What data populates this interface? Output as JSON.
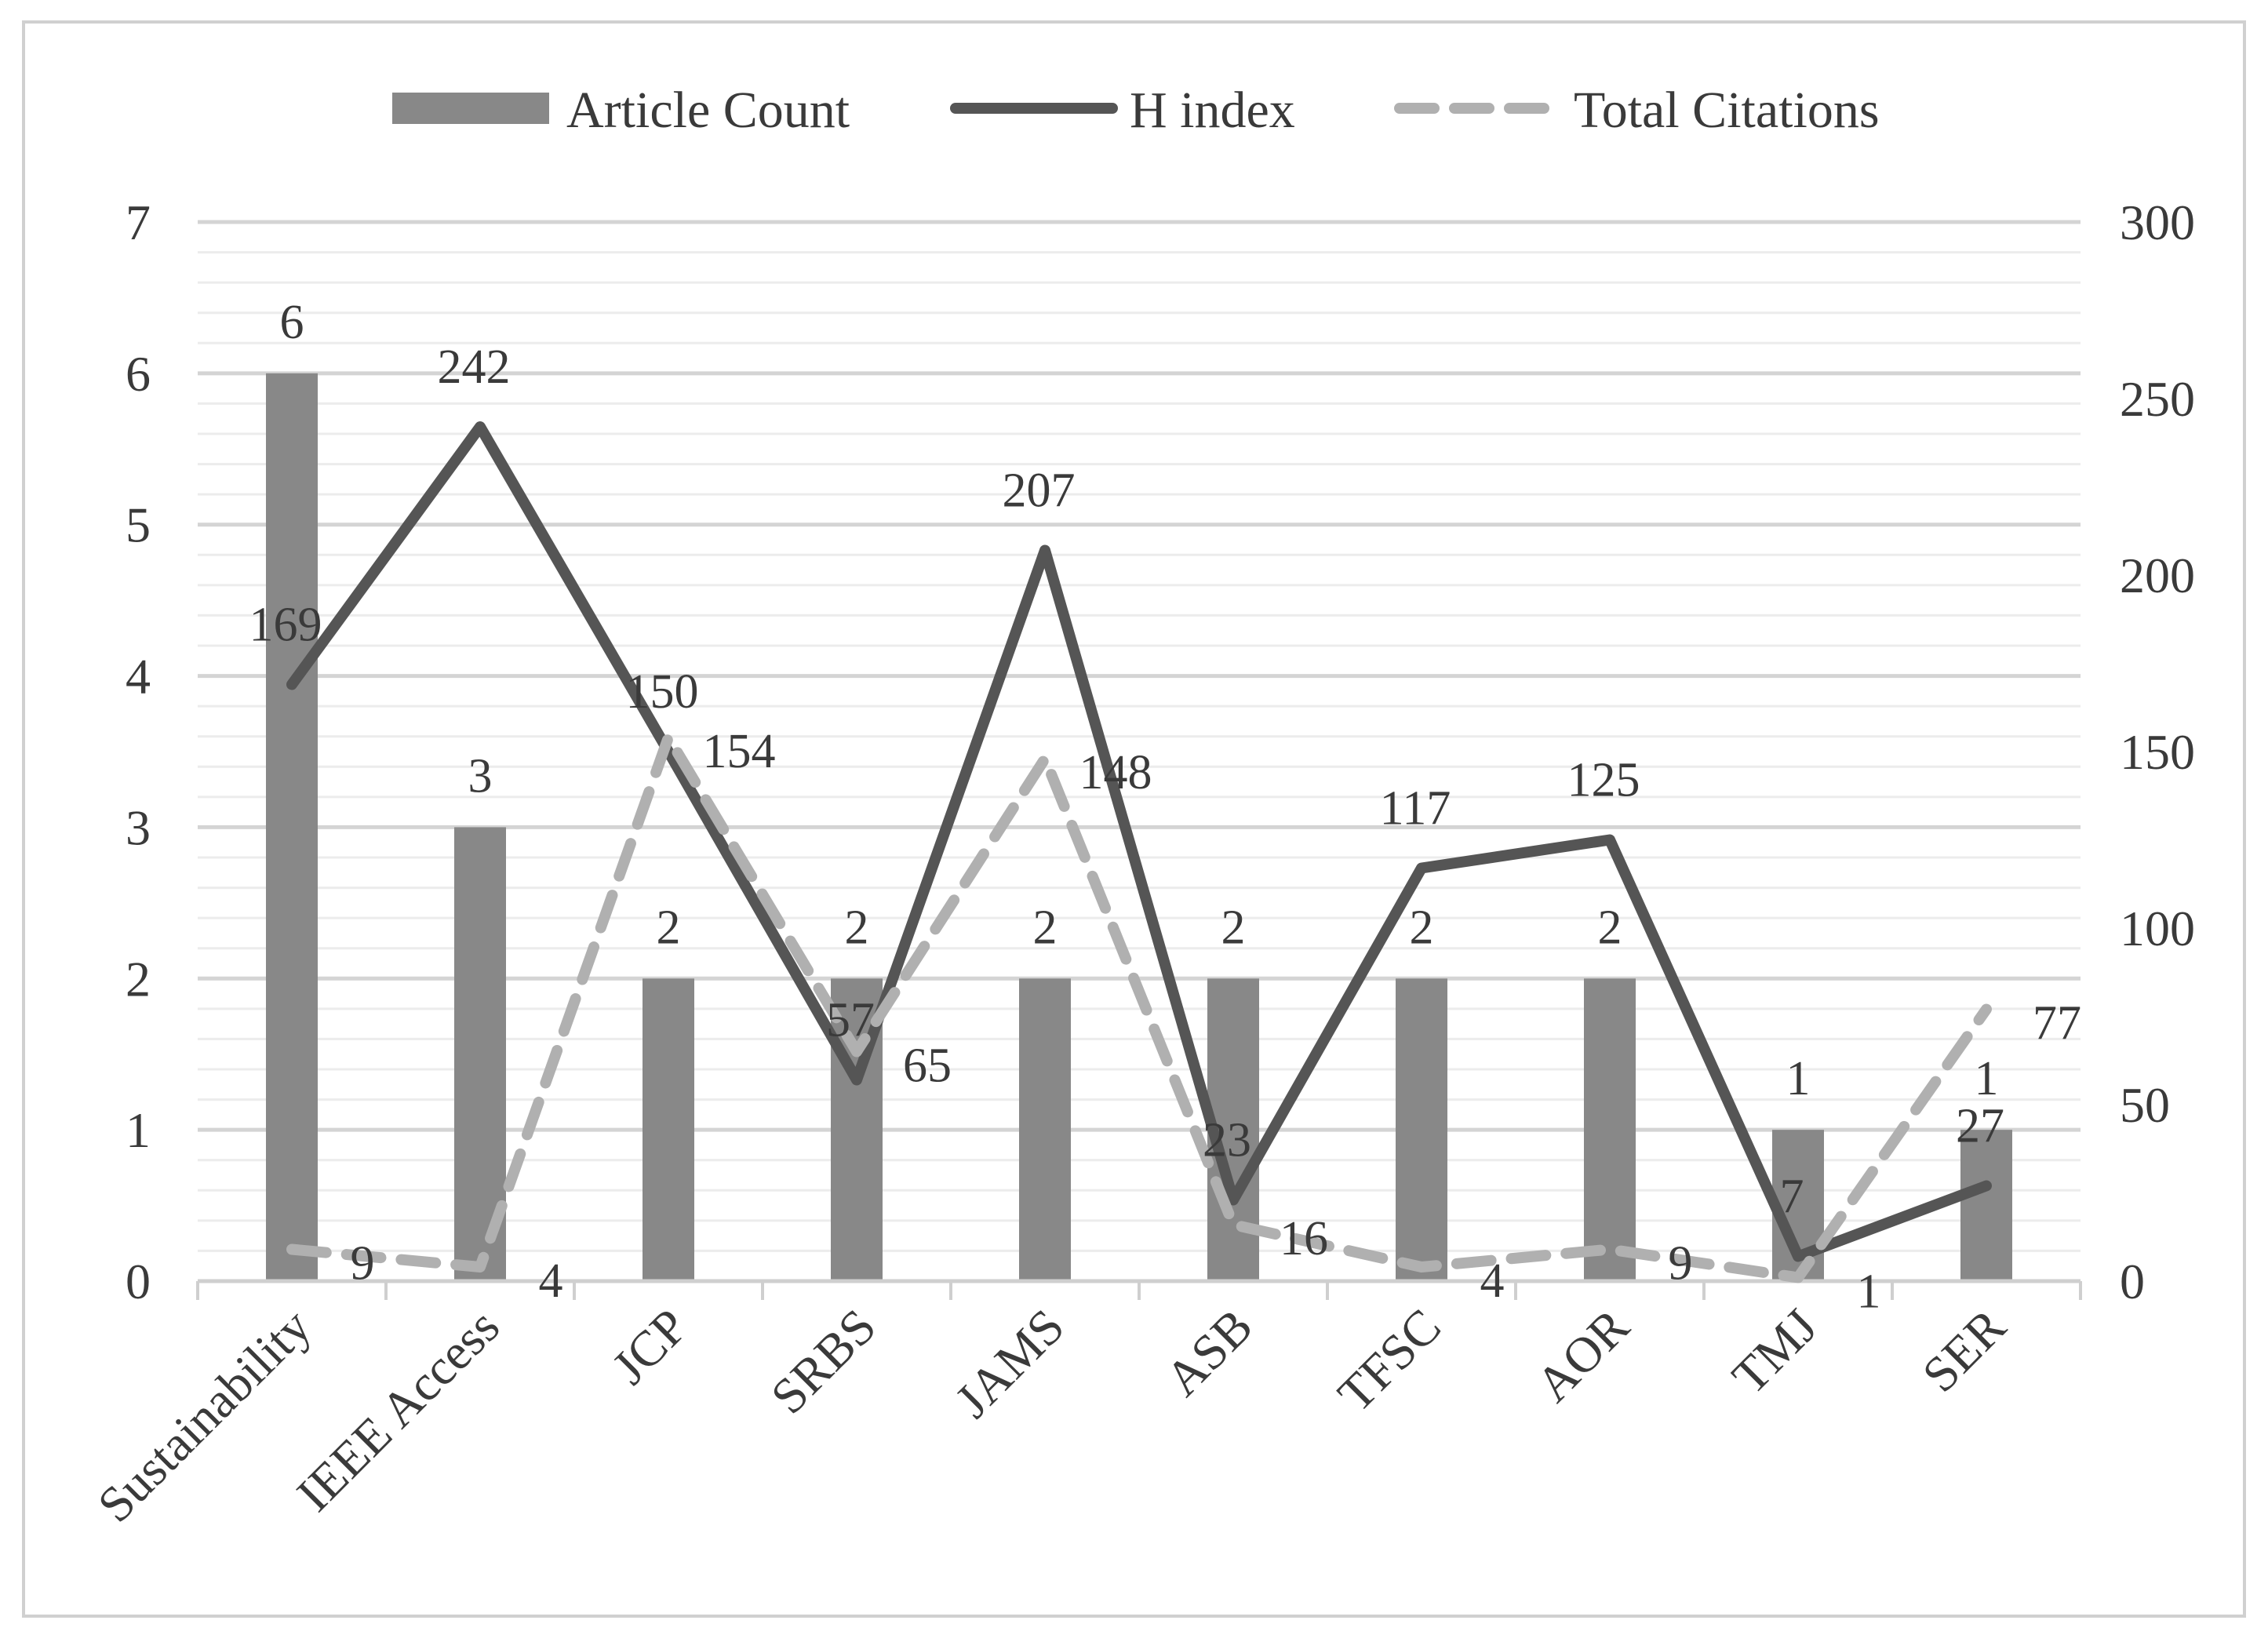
{
  "chart_data": {
    "type": "bar",
    "categories": [
      "Sustainability",
      "IEEE Access",
      "JCP",
      "SRBS",
      "JAMS",
      "ASB",
      "TFSC",
      "AOR",
      "TMJ",
      "SER"
    ],
    "series": [
      {
        "name": "Article Count",
        "type": "bar",
        "axis": "left",
        "color": "#888888",
        "values": [
          6,
          3,
          2,
          2,
          2,
          2,
          2,
          2,
          1,
          1
        ]
      },
      {
        "name": "H index",
        "type": "line",
        "axis": "right",
        "color": "#555555",
        "style": "solid",
        "values": [
          169,
          242,
          150,
          57,
          207,
          23,
          117,
          125,
          7,
          27
        ]
      },
      {
        "name": "Total Citations",
        "type": "line",
        "axis": "right",
        "color": "#b0b0b0",
        "style": "dashed",
        "values": [
          9,
          4,
          154,
          65,
          148,
          16,
          4,
          9,
          1,
          77
        ]
      }
    ],
    "left_axis": {
      "min": 0,
      "max": 7,
      "ticks": [
        0,
        1,
        2,
        3,
        4,
        5,
        6,
        7
      ]
    },
    "right_axis": {
      "min": 0,
      "max": 300,
      "ticks": [
        0,
        50,
        100,
        150,
        200,
        250,
        300
      ]
    },
    "grid": true,
    "legend_position": "top-center",
    "data_labels": true
  }
}
